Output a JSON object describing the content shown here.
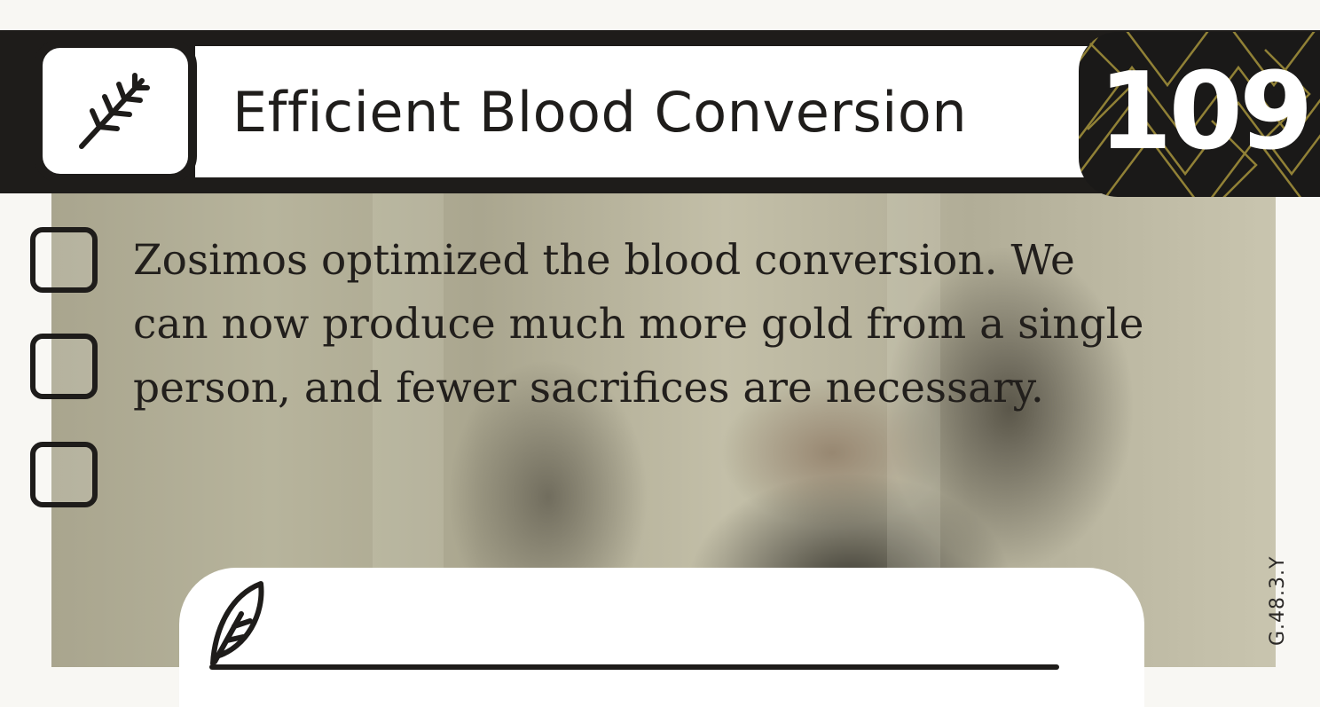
{
  "card": {
    "title": "Efficient Blood Conversion",
    "number": "109",
    "category_icon": "herb-sprig-icon",
    "body_lines": [
      "Zosimos optimized the blood conversion. We",
      "can now produce much more gold from a single",
      "person, and fewer sacrifices are necessary."
    ],
    "checkbox_count": 3,
    "notes_icon": "quill-feather-icon",
    "code": "G.48.3.Y",
    "colors": {
      "band": "#1e1c1a",
      "badge_pattern": "#b9a440",
      "text": "#221f1c"
    }
  }
}
